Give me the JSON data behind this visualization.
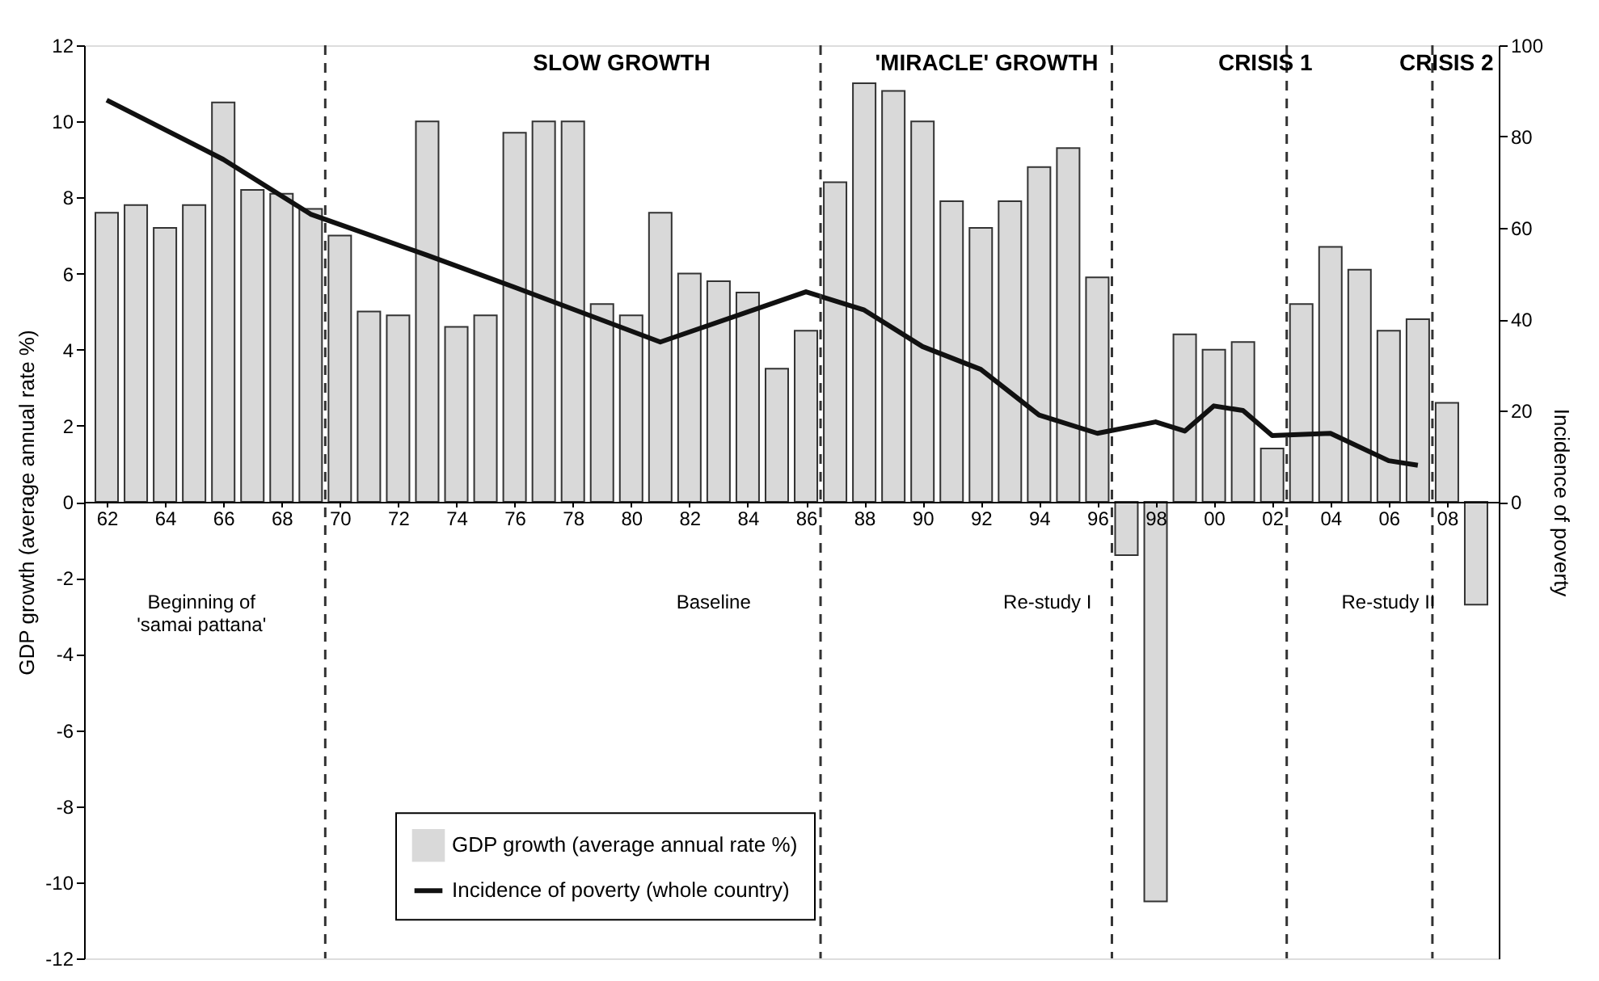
{
  "chart_data": {
    "type": "bar",
    "x": [
      1962,
      1963,
      1964,
      1965,
      1966,
      1967,
      1968,
      1969,
      1970,
      1971,
      1972,
      1973,
      1974,
      1975,
      1976,
      1977,
      1978,
      1979,
      1980,
      1981,
      1982,
      1983,
      1984,
      1985,
      1986,
      1987,
      1988,
      1989,
      1990,
      1991,
      1992,
      1993,
      1994,
      1995,
      1996,
      1997,
      1998,
      1999,
      2000,
      2001,
      2002,
      2003,
      2004,
      2005,
      2006,
      2007,
      2008,
      2009
    ],
    "series": [
      {
        "name": "GDP growth (average annual rate %)",
        "color": "#d9d9d9",
        "values": [
          7.6,
          7.8,
          7.2,
          7.8,
          10.5,
          8.2,
          8.1,
          7.7,
          7.0,
          5.0,
          4.9,
          10.0,
          4.6,
          4.9,
          9.7,
          10.0,
          10.0,
          5.2,
          4.9,
          7.6,
          6.0,
          5.8,
          5.5,
          3.5,
          4.5,
          8.4,
          11.0,
          10.8,
          10.0,
          7.9,
          7.2,
          7.9,
          8.8,
          9.3,
          5.9,
          -1.4,
          -10.5,
          4.4,
          4.0,
          4.2,
          1.4,
          5.2,
          6.7,
          6.1,
          4.5,
          4.8,
          2.6,
          -2.7
        ]
      },
      {
        "name": "Incidence of poverty (whole country)",
        "type": "line",
        "axis": "y2",
        "color": "#111111",
        "x": [
          1962,
          1966,
          1969,
          1973,
          1976,
          1981,
          1986,
          1988,
          1990,
          1992,
          1994,
          1996,
          1998,
          1999,
          2000,
          2001,
          2002,
          2004,
          2006,
          2007
        ],
        "values": [
          88,
          75,
          63,
          54,
          47,
          35,
          46,
          42,
          34,
          29,
          19,
          15,
          17.5,
          15.5,
          21,
          20,
          14.5,
          15,
          9,
          8
        ]
      }
    ],
    "xlim": [
      1961.5,
      2009.5
    ],
    "xticks": [
      {
        "value": 1962,
        "label": "62"
      },
      {
        "value": 1964,
        "label": "64"
      },
      {
        "value": 1966,
        "label": "66"
      },
      {
        "value": 1968,
        "label": "68"
      },
      {
        "value": 1970,
        "label": "70"
      },
      {
        "value": 1972,
        "label": "72"
      },
      {
        "value": 1974,
        "label": "74"
      },
      {
        "value": 1976,
        "label": "76"
      },
      {
        "value": 1978,
        "label": "78"
      },
      {
        "value": 1980,
        "label": "80"
      },
      {
        "value": 1982,
        "label": "82"
      },
      {
        "value": 1984,
        "label": "84"
      },
      {
        "value": 1986,
        "label": "86"
      },
      {
        "value": 1988,
        "label": "88"
      },
      {
        "value": 1990,
        "label": "90"
      },
      {
        "value": 1992,
        "label": "92"
      },
      {
        "value": 1994,
        "label": "94"
      },
      {
        "value": 1996,
        "label": "96"
      },
      {
        "value": 1998,
        "label": "98"
      },
      {
        "value": 2000,
        "label": "00"
      },
      {
        "value": 2002,
        "label": "02"
      },
      {
        "value": 2004,
        "label": "04"
      },
      {
        "value": 2006,
        "label": "06"
      },
      {
        "value": 2008,
        "label": "08"
      }
    ],
    "ylim": [
      -12,
      12
    ],
    "yticks": [
      -12,
      -10,
      -8,
      -6,
      -4,
      -2,
      0,
      2,
      4,
      6,
      8,
      10,
      12
    ],
    "y2lim": [
      -100,
      100
    ],
    "y2ticks": [
      0,
      20,
      40,
      60,
      80,
      100
    ],
    "ylabel": "GDP growth (average annual rate %)",
    "y2label": "Incidence of poverty",
    "ref_lines": [
      {
        "axis": "x",
        "value": 1969.5,
        "line_style": "dashed"
      },
      {
        "axis": "x",
        "value": 1986.5,
        "line_style": "dashed"
      },
      {
        "axis": "x",
        "value": 1996.5,
        "line_style": "dashed"
      },
      {
        "axis": "x",
        "value": 2002.5,
        "line_style": "dashed"
      },
      {
        "axis": "x",
        "value": 2007.5,
        "line_style": "dashed"
      }
    ],
    "annotations": [
      "SLOW GROWTH",
      "'MIRACLE' GROWTH",
      "CRISIS 1",
      "CRISIS 2",
      "Beginning of\n'samai pattana'",
      "Baseline",
      "Re-study I",
      "Re-study II"
    ],
    "legend": "bottom left",
    "grid": false
  }
}
